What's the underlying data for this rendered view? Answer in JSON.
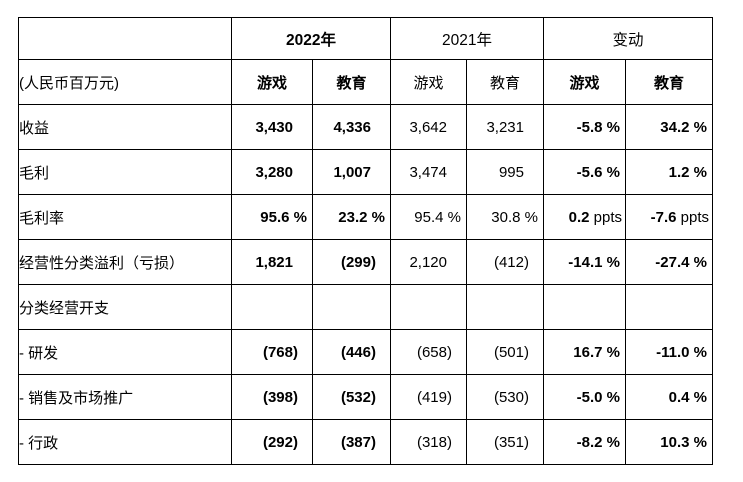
{
  "table": {
    "currency_note": "(人民币百万元)",
    "column_groups": [
      {
        "label": "2022年",
        "bold": true
      },
      {
        "label": "2021年",
        "bold": false
      },
      {
        "label": "变动",
        "bold": false
      }
    ],
    "segment_headers": [
      "游戏",
      "教育",
      "游戏",
      "教育",
      "游戏",
      "教育"
    ],
    "rows": [
      {
        "label": "收益",
        "cells": [
          {
            "t": "3,430"
          },
          {
            "t": "4,336"
          },
          {
            "t": "3,642"
          },
          {
            "t": "3,231"
          },
          {
            "t": "-5.8 %"
          },
          {
            "t": "34.2 %"
          }
        ]
      },
      {
        "label": "毛利",
        "cells": [
          {
            "t": "3,280"
          },
          {
            "t": "1,007"
          },
          {
            "t": "3,474"
          },
          {
            "t": "995"
          },
          {
            "t": "-5.6 %"
          },
          {
            "t": "1.2 %"
          }
        ]
      },
      {
        "label": "毛利率",
        "cells": [
          {
            "t": "95.6 %"
          },
          {
            "t": "23.2 %"
          },
          {
            "t": "95.4 %"
          },
          {
            "t": "30.8 %"
          },
          {
            "t": "0.2",
            "u": " ppts"
          },
          {
            "t": "-7.6",
            "u": " ppts"
          }
        ]
      },
      {
        "label": "经营性分类溢利（亏损）",
        "cells": [
          {
            "t": "1,821"
          },
          {
            "t": "(299)"
          },
          {
            "t": "2,120"
          },
          {
            "t": "(412)"
          },
          {
            "t": "-14.1 %"
          },
          {
            "t": "-27.4 %"
          }
        ]
      },
      {
        "label": "分类经营开支",
        "cells": [
          {
            "t": ""
          },
          {
            "t": ""
          },
          {
            "t": ""
          },
          {
            "t": ""
          },
          {
            "t": ""
          },
          {
            "t": ""
          }
        ]
      },
      {
        "label": "- 研发",
        "cells": [
          {
            "t": "(768)"
          },
          {
            "t": "(446)"
          },
          {
            "t": "(658)"
          },
          {
            "t": "(501)"
          },
          {
            "t": "16.7 %"
          },
          {
            "t": "-11.0 %"
          }
        ]
      },
      {
        "label": "- 销售及市场推广",
        "cells": [
          {
            "t": "(398)"
          },
          {
            "t": "(532)"
          },
          {
            "t": "(419)"
          },
          {
            "t": "(530)"
          },
          {
            "t": "-5.0 %"
          },
          {
            "t": "0.4 %"
          }
        ]
      },
      {
        "label": "- 行政",
        "cells": [
          {
            "t": "(292)"
          },
          {
            "t": "(387)"
          },
          {
            "t": "(318)"
          },
          {
            "t": "(351)"
          },
          {
            "t": "-8.2 %"
          },
          {
            "t": "10.3 %"
          }
        ]
      }
    ]
  },
  "colors": {
    "border": "#000000",
    "text": "#000000",
    "background": "#ffffff"
  }
}
